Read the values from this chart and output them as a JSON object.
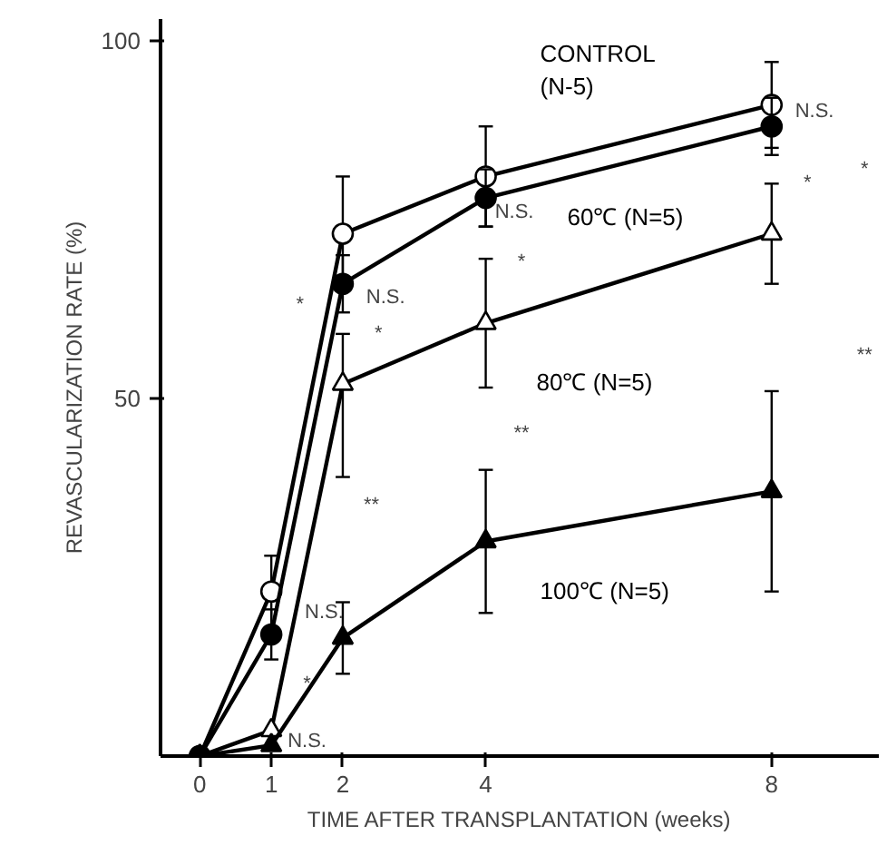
{
  "chart_data": {
    "type": "line",
    "xlabel": "TIME AFTER TRANSPLANTATION (weeks)",
    "ylabel": "REVASCULARIZATION RATE (%)",
    "xlim": [
      -0.55,
      9.5
    ],
    "ylim": [
      0,
      103
    ],
    "xticks": [
      0,
      1,
      2,
      4,
      8
    ],
    "yticks": [
      50,
      100
    ],
    "grid": false,
    "line_style": "solid",
    "x": [
      0,
      1,
      2,
      4,
      8
    ],
    "series": [
      {
        "name": "CONTROL\n(N-5)",
        "color": "#000000",
        "marker": "circle",
        "values": [
          0,
          23,
          73,
          81,
          91
        ],
        "errors": [
          null,
          5,
          8,
          7,
          6
        ]
      },
      {
        "name": "60℃ (N=5)",
        "color": "#000000",
        "marker": "circle",
        "values": [
          0,
          17,
          66,
          78,
          88
        ],
        "errors": [
          null,
          3.5,
          4,
          4,
          4
        ]
      },
      {
        "name": "80℃ (N=5)",
        "color": "#000000",
        "marker": "triangle",
        "values": [
          0,
          3.6,
          52,
          60.5,
          73
        ],
        "errors": [
          null,
          null,
          [
            39,
            59
          ],
          9,
          7
        ]
      },
      {
        "name": "100℃ (N=5)",
        "color": "#000000",
        "marker": "triangle",
        "values": [
          0,
          1.5,
          16.5,
          30,
          37
        ],
        "errors": [
          null,
          null,
          5,
          10,
          14
        ]
      }
    ],
    "annotations": [
      "N.S.",
      "*",
      "*",
      "**",
      "N.S.",
      "*",
      "N.S.",
      "N.S.",
      "*",
      "**",
      "N.S.",
      "*",
      "*",
      "**"
    ]
  }
}
